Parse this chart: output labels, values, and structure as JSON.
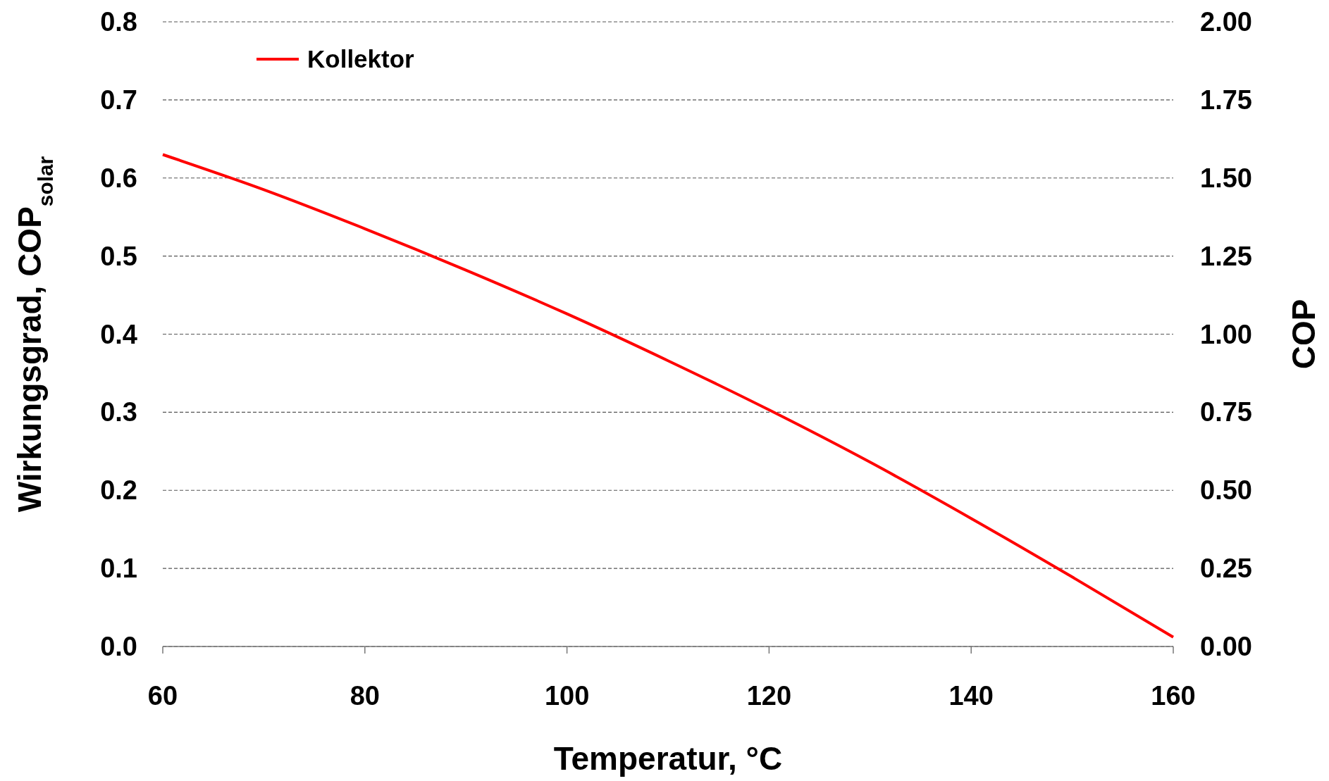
{
  "chart_data": {
    "type": "line",
    "xlabel": "Temperatur, °C",
    "ylabel": "Wirkungsgrad, COP$_{solar}$",
    "y2label": "COP",
    "x": [
      60,
      70,
      80,
      90,
      100,
      110,
      120,
      130,
      140,
      150,
      160
    ],
    "series": [
      {
        "name": "Kollektor",
        "color": "#ff0000",
        "values": [
          0.63,
          0.585,
          0.535,
          0.482,
          0.426,
          0.366,
          0.303,
          0.236,
          0.164,
          0.089,
          0.012
        ]
      }
    ],
    "xlim": [
      60,
      160
    ],
    "xticks": [
      60,
      80,
      100,
      120,
      140,
      160
    ],
    "ylim": [
      0,
      0.8
    ],
    "yticks": [
      {
        "value": 0,
        "label": "0.0"
      },
      0.1,
      0.2,
      0.3,
      0.4,
      0.5,
      0.6,
      0.7,
      0.8
    ],
    "y2lim": [
      0,
      2
    ],
    "y2ticks": [
      {
        "value": 0,
        "label": "0.00"
      },
      {
        "value": 0.25,
        "label": "0.25"
      },
      {
        "value": 0.5,
        "label": "0.50"
      },
      {
        "value": 0.75,
        "label": "0.75"
      },
      {
        "value": 1,
        "label": "1.00"
      },
      {
        "value": 1.25,
        "label": "1.25"
      },
      {
        "value": 1.5,
        "label": "1.50"
      },
      {
        "value": 1.75,
        "label": "1.75"
      },
      {
        "value": 2,
        "label": "2.00"
      }
    ],
    "grid": "y",
    "legend": "top left",
    "marker": "none",
    "line_style": "solid"
  }
}
